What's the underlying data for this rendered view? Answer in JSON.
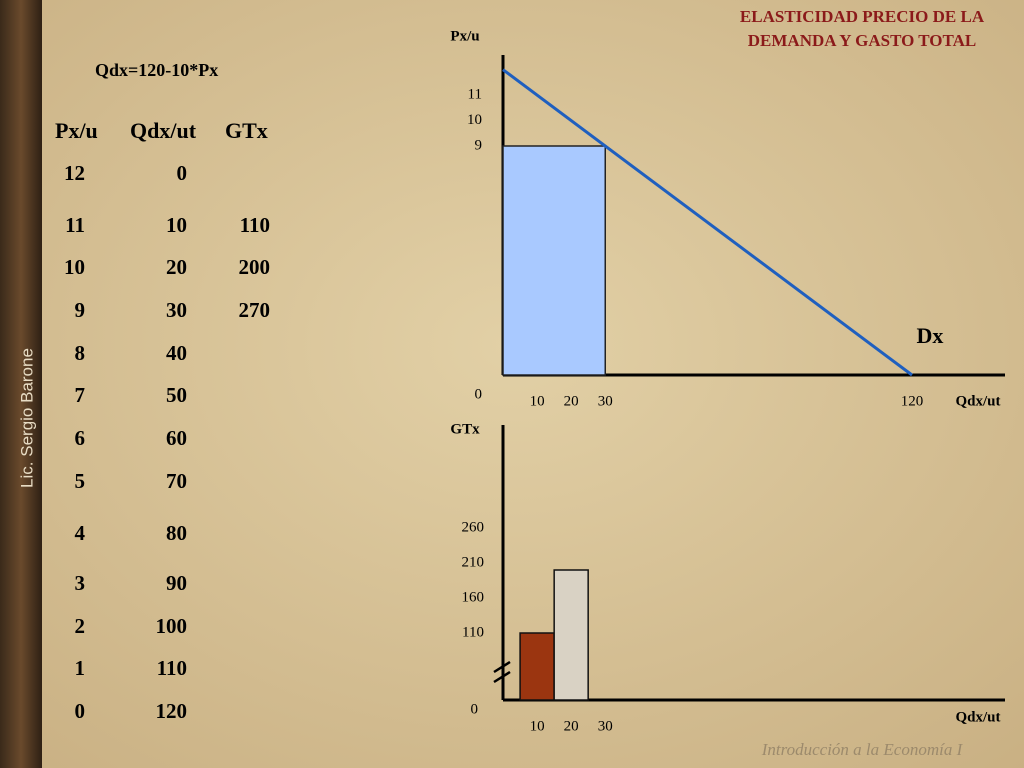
{
  "title_lines": [
    "ELASTICIDAD PRECIO DE LA",
    "DEMANDA Y GASTO TOTAL"
  ],
  "author": "Lic. Sergio Barone",
  "footer": "Introducción a la Economía I",
  "equation": "Qdx=120-10*Px",
  "table": {
    "header": [
      "Px/u",
      "Qdx/ut",
      "GTx"
    ],
    "rows": [
      [
        12,
        0
      ],
      [
        11,
        10,
        110
      ],
      [
        10,
        20,
        200
      ],
      [
        9,
        30,
        270
      ],
      [
        8,
        40
      ],
      [
        7,
        50
      ],
      [
        6,
        60
      ],
      [
        5,
        70
      ],
      [
        4,
        80
      ],
      [
        3,
        90
      ],
      [
        2,
        100
      ],
      [
        1,
        110
      ],
      [
        0,
        120
      ]
    ]
  },
  "demand_chart": {
    "ylabel": "Px/u",
    "xlabel": "Qdx/ut",
    "curve_label": "Dx",
    "yticks": [
      0,
      9,
      10,
      11
    ],
    "xticks": [
      10,
      20,
      30,
      120
    ],
    "curve": {
      "x": [
        0,
        120
      ],
      "y": [
        12,
        0
      ]
    },
    "area": {
      "x": 30,
      "y": 9
    },
    "area_color": "#a9c9ff",
    "curve_color": "#1f5fbf"
  },
  "gt_chart": {
    "ylabel": "GTx",
    "xlabel": "Qdx/ut",
    "yticks": [
      0,
      110,
      160,
      210,
      260
    ],
    "xticks": [
      10,
      20,
      30
    ],
    "bars": {
      "x": [
        10,
        20
      ],
      "values": [
        110,
        200
      ],
      "colors": [
        "#9b3510",
        "#d9d2c4"
      ]
    }
  }
}
